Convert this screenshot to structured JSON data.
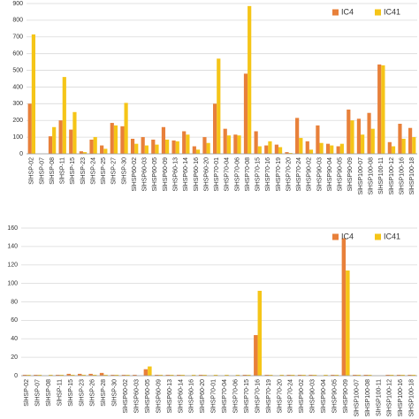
{
  "chart_data": [
    {
      "type": "bar",
      "categories": [
        "SlHSP-02",
        "SlHSP-07",
        "SlHSP-08",
        "SlHSP-11",
        "SlHSP-15",
        "SlHSP-23",
        "SlHSP-24",
        "SlHSP-25",
        "SlHSP-27",
        "SlHSP-30",
        "SlHSP60-02",
        "SlHSP60-03",
        "SlHSP60-05",
        "SlHSP60-09",
        "SlHSP60-13",
        "SlHSP60-14",
        "SlHSP60-16",
        "SlHSP60-20",
        "SlHSP70-01",
        "SlHSP70-04",
        "SlHSP70-06",
        "SlHSP70-08",
        "SlHSP70-15",
        "SlHSP70-16",
        "SlHSP70-19",
        "SlHSP70-20",
        "SlHSP70-24",
        "SlHSP90-02",
        "SlHSP90-03",
        "SlHSP90-04",
        "SlHSP90-05",
        "SlHSP90-09",
        "SlHSP100-07",
        "SlHSP100-08",
        "SlHSP100-11",
        "SlHSP100-12",
        "SlHSP100-16",
        "SlHSP100-18"
      ],
      "series": [
        {
          "name": "IC4",
          "color": "#e8803a",
          "values": [
            300,
            0,
            105,
            200,
            145,
            15,
            85,
            50,
            185,
            165,
            90,
            100,
            85,
            160,
            80,
            135,
            45,
            100,
            300,
            150,
            115,
            480,
            135,
            50,
            55,
            10,
            215,
            75,
            170,
            60,
            45,
            265,
            210,
            245,
            535,
            70,
            180,
            155
          ]
        },
        {
          "name": "IC41",
          "color": "#f5c518",
          "values": [
            715,
            0,
            160,
            460,
            250,
            10,
            100,
            30,
            170,
            305,
            60,
            50,
            55,
            85,
            75,
            115,
            25,
            65,
            570,
            110,
            110,
            885,
            45,
            75,
            40,
            5,
            95,
            25,
            65,
            50,
            60,
            200,
            115,
            150,
            530,
            45,
            90,
            100
          ]
        }
      ],
      "ylim": [
        0,
        900
      ],
      "yticks": [
        0,
        100,
        200,
        300,
        400,
        500,
        600,
        700,
        800,
        900
      ],
      "grid": true,
      "legend": "top-right"
    },
    {
      "type": "bar",
      "categories": [
        "SlHSP-02",
        "SlHSP-07",
        "SlHSP-08",
        "SlHSP-11",
        "SlHSP-15",
        "SlHSP-23",
        "SlHSP-26",
        "SlHSP-28",
        "SlHSP-30",
        "SlHSP60-02",
        "SlHSP60-03",
        "SlHSP60-05",
        "SlHSP60-09",
        "SlHSP60-13",
        "SlHSP60-14",
        "SlHSP60-16",
        "SlHSP60-20",
        "SlHSP70-01",
        "SlHSP70-04",
        "SlHSP70-06",
        "SlHSP70-15",
        "SlHSP70-16",
        "SlHSP70-19",
        "SlHSP70-20",
        "SlHSP70-24",
        "SlHSP90-02",
        "SlHSP90-03",
        "SlHSP90-04",
        "SlHSP90-05",
        "SlHSP90-09",
        "SlHSP100-07",
        "SlHSP100-08",
        "SlHSP100-11",
        "SlHSP100-12",
        "SlHSP100-16",
        "SlHSP100-18"
      ],
      "series": [
        {
          "name": "IC4",
          "color": "#e8803a",
          "values": [
            1,
            1,
            0,
            1,
            2,
            2,
            2,
            3,
            1,
            1,
            1,
            7,
            1,
            1,
            1,
            0,
            1,
            0,
            0,
            0,
            1,
            44,
            1,
            0,
            1,
            1,
            1,
            0,
            1,
            149,
            1,
            1,
            0,
            1,
            1,
            1
          ]
        },
        {
          "name": "IC41",
          "color": "#f5c518",
          "values": [
            1,
            1,
            1,
            1,
            1,
            1,
            1,
            1,
            1,
            1,
            0,
            10,
            1,
            1,
            1,
            1,
            1,
            1,
            1,
            1,
            1,
            92,
            1,
            1,
            1,
            1,
            1,
            1,
            1,
            114,
            1,
            1,
            0,
            1,
            1,
            1
          ]
        }
      ],
      "ylim": [
        0,
        160
      ],
      "yticks": [
        0,
        20,
        40,
        60,
        80,
        100,
        120,
        140,
        160
      ],
      "grid": true,
      "legend": "top-right"
    }
  ]
}
